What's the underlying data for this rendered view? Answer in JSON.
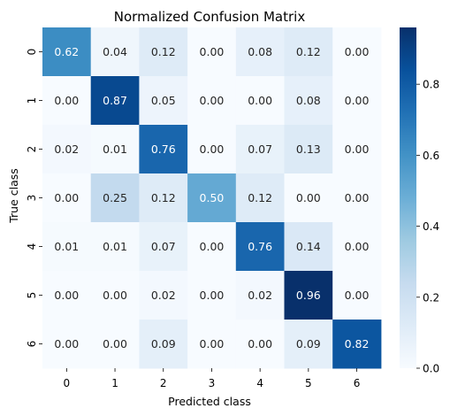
{
  "chart_data": {
    "type": "heatmap",
    "title": "Normalized Confusion Matrix",
    "xlabel": "Predicted class",
    "ylabel": "True class",
    "x_categories": [
      "0",
      "1",
      "2",
      "3",
      "4",
      "5",
      "6"
    ],
    "y_categories": [
      "0",
      "1",
      "2",
      "3",
      "4",
      "5",
      "6"
    ],
    "values": [
      [
        0.62,
        0.04,
        0.12,
        0.0,
        0.08,
        0.12,
        0.0
      ],
      [
        0.0,
        0.87,
        0.05,
        0.0,
        0.0,
        0.08,
        0.0
      ],
      [
        0.02,
        0.01,
        0.76,
        0.0,
        0.07,
        0.13,
        0.0
      ],
      [
        0.0,
        0.25,
        0.12,
        0.5,
        0.12,
        0.0,
        0.0
      ],
      [
        0.01,
        0.01,
        0.07,
        0.0,
        0.76,
        0.14,
        0.0
      ],
      [
        0.0,
        0.0,
        0.02,
        0.0,
        0.02,
        0.96,
        0.0
      ],
      [
        0.0,
        0.0,
        0.09,
        0.0,
        0.0,
        0.09,
        0.82
      ]
    ],
    "colormap": "Blues",
    "color_range": [
      0.0,
      0.96
    ],
    "colorbar_ticks": [
      0.0,
      0.2,
      0.4,
      0.6,
      0.8
    ],
    "colorbar_tick_labels": [
      "0.0",
      "0.2",
      "0.4",
      "0.6",
      "0.8"
    ],
    "annotation_format": "2 decimals",
    "grid": false,
    "legend": "colorbar-right"
  }
}
